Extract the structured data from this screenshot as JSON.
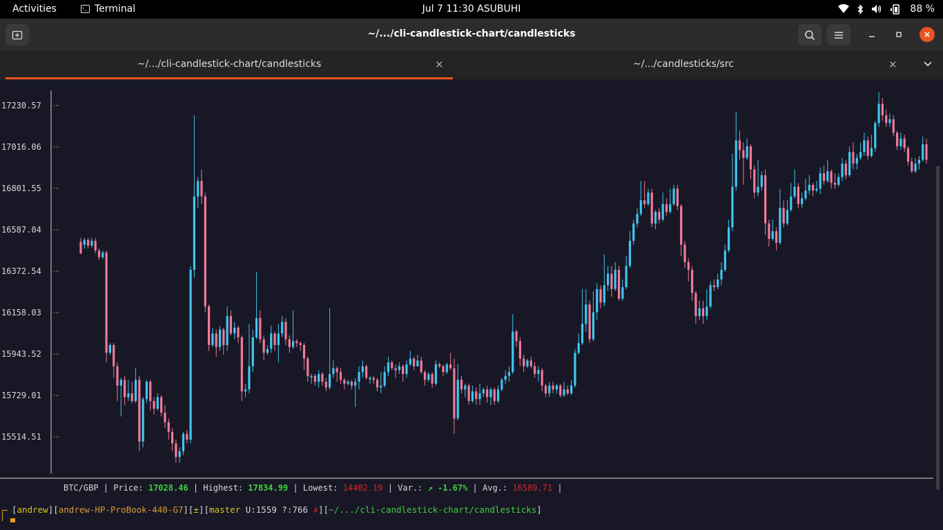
{
  "topbar": {
    "activities": "Activities",
    "app_name": "Terminal",
    "clock": "Jul 7  11:30 ASUBUHI",
    "battery": "88 %"
  },
  "window": {
    "title": "~/.../cli-candlestick-chart/candlesticks"
  },
  "tabs": [
    {
      "label": "~/.../cli-candlestick-chart/candlesticks",
      "active": true
    },
    {
      "label": "~/.../candlesticks/src",
      "active": false
    }
  ],
  "colors": {
    "bullish": "#3fc7f0",
    "bearish": "#f07a9b",
    "accent": "#e95420",
    "close_button": "#e95420"
  },
  "chart_data": {
    "type": "candlestick",
    "y_ticks": [
      "17230.57",
      "17016.06",
      "16801.55",
      "16587.04",
      "16372.54",
      "16158.03",
      "15943.52",
      "15729.01",
      "15514.51"
    ],
    "ylim": [
      15400,
      17320
    ],
    "candles": [
      [
        16525,
        16465,
        16545,
        16460
      ],
      [
        16510,
        16535,
        16545,
        16490
      ],
      [
        16535,
        16505,
        16545,
        16490
      ],
      [
        16505,
        16530,
        16545,
        16495
      ],
      [
        16530,
        16480,
        16545,
        16465
      ],
      [
        16480,
        16445,
        16490,
        16430
      ],
      [
        16445,
        16470,
        16480,
        16435
      ],
      [
        16470,
        15950,
        16480,
        15900
      ],
      [
        15950,
        15990,
        16000,
        15940
      ],
      [
        15990,
        15880,
        16000,
        15820
      ],
      [
        15880,
        15780,
        15900,
        15700
      ],
      [
        15780,
        15810,
        15820,
        15620
      ],
      [
        15810,
        15720,
        15830,
        15680
      ],
      [
        15720,
        15740,
        15810,
        15700
      ],
      [
        15740,
        15700,
        15800,
        15690
      ],
      [
        15700,
        15810,
        15870,
        15690
      ],
      [
        15810,
        15490,
        15830,
        15440
      ],
      [
        15490,
        15710,
        15720,
        15460
      ],
      [
        15710,
        15800,
        15810,
        15690
      ],
      [
        15800,
        15700,
        15810,
        15650
      ],
      [
        15700,
        15660,
        15720,
        15630
      ],
      [
        15660,
        15720,
        15740,
        15650
      ],
      [
        15720,
        15640,
        15730,
        15620
      ],
      [
        15640,
        15590,
        15680,
        15560
      ],
      [
        15590,
        15540,
        15610,
        15500
      ],
      [
        15540,
        15480,
        15560,
        15440
      ],
      [
        15480,
        15410,
        15500,
        15380
      ],
      [
        15410,
        15440,
        15460,
        15380
      ],
      [
        15440,
        15530,
        15540,
        15420
      ],
      [
        15530,
        15500,
        15550,
        15480
      ],
      [
        15500,
        16380,
        16400,
        15480
      ],
      [
        16380,
        16760,
        17180,
        16340
      ],
      [
        16760,
        16840,
        16860,
        16700
      ],
      [
        16840,
        16760,
        16900,
        16720
      ],
      [
        16760,
        16190,
        16780,
        16160
      ],
      [
        16190,
        15990,
        16200,
        15960
      ],
      [
        15990,
        16050,
        16080,
        15980
      ],
      [
        16050,
        15980,
        16070,
        15930
      ],
      [
        15980,
        16070,
        16090,
        15960
      ],
      [
        16070,
        15990,
        16080,
        15940
      ],
      [
        15990,
        16140,
        16190,
        15960
      ],
      [
        16140,
        16050,
        16170,
        16040
      ],
      [
        16050,
        16080,
        16110,
        16020
      ],
      [
        16080,
        16030,
        16090,
        16000
      ],
      [
        16030,
        15750,
        16040,
        15700
      ],
      [
        15750,
        15760,
        15790,
        15720
      ],
      [
        15760,
        15880,
        16100,
        15740
      ],
      [
        15880,
        16030,
        16070,
        15850
      ],
      [
        16030,
        16130,
        16370,
        16020
      ],
      [
        16130,
        16020,
        16170,
        16000
      ],
      [
        16020,
        15950,
        16040,
        15910
      ],
      [
        15950,
        15970,
        15990,
        15940
      ],
      [
        15970,
        16050,
        16090,
        15950
      ],
      [
        16050,
        15990,
        16060,
        15960
      ],
      [
        15990,
        16050,
        16100,
        15900
      ],
      [
        16050,
        16110,
        16140,
        16030
      ],
      [
        16110,
        16020,
        16130,
        15990
      ],
      [
        16020,
        15980,
        16040,
        15950
      ],
      [
        15980,
        16010,
        16170,
        15970
      ],
      [
        16010,
        16000,
        16020,
        15980
      ],
      [
        16000,
        15990,
        16010,
        15960
      ],
      [
        15990,
        15920,
        16000,
        15860
      ],
      [
        15920,
        15830,
        15930,
        15800
      ],
      [
        15830,
        15830,
        15840,
        15790
      ],
      [
        15830,
        15800,
        15840,
        15780
      ],
      [
        15800,
        15840,
        15860,
        15770
      ],
      [
        15840,
        15800,
        15850,
        15780
      ],
      [
        15800,
        15770,
        15820,
        15750
      ],
      [
        15770,
        15840,
        16180,
        15760
      ],
      [
        15840,
        15870,
        15910,
        15820
      ],
      [
        15870,
        15850,
        15880,
        15800
      ],
      [
        15850,
        15810,
        15870,
        15790
      ],
      [
        15810,
        15790,
        15820,
        15760
      ],
      [
        15790,
        15800,
        15810,
        15780
      ],
      [
        15800,
        15780,
        15810,
        15760
      ],
      [
        15780,
        15800,
        15820,
        15670
      ],
      [
        15800,
        15850,
        15880,
        15760
      ],
      [
        15850,
        15880,
        15910,
        15820
      ],
      [
        15880,
        15820,
        15890,
        15810
      ],
      [
        15820,
        15820,
        15830,
        15790
      ],
      [
        15820,
        15810,
        15830,
        15790
      ],
      [
        15810,
        15770,
        15820,
        15750
      ],
      [
        15770,
        15780,
        15850,
        15740
      ],
      [
        15780,
        15850,
        15880,
        15770
      ],
      [
        15850,
        15900,
        15930,
        15830
      ],
      [
        15900,
        15870,
        15910,
        15860
      ],
      [
        15870,
        15860,
        15890,
        15820
      ],
      [
        15860,
        15880,
        15900,
        15840
      ],
      [
        15880,
        15840,
        15890,
        15800
      ],
      [
        15840,
        15890,
        15910,
        15820
      ],
      [
        15890,
        15920,
        15960,
        15880
      ],
      [
        15920,
        15880,
        15930,
        15860
      ],
      [
        15880,
        15910,
        15940,
        15880
      ],
      [
        15910,
        15850,
        15930,
        15840
      ],
      [
        15850,
        15810,
        15860,
        15780
      ],
      [
        15810,
        15840,
        15850,
        15800
      ],
      [
        15840,
        15790,
        15850,
        15770
      ],
      [
        15790,
        15890,
        15910,
        15780
      ],
      [
        15890,
        15880,
        15900,
        15870
      ],
      [
        15880,
        15850,
        15890,
        15830
      ],
      [
        15850,
        15890,
        15900,
        15840
      ],
      [
        15890,
        15870,
        15950,
        15860
      ],
      [
        15870,
        15610,
        15920,
        15530
      ],
      [
        15610,
        15810,
        15890,
        15600
      ],
      [
        15810,
        15760,
        15830,
        15740
      ],
      [
        15760,
        15780,
        15790,
        15720
      ],
      [
        15780,
        15700,
        15790,
        15680
      ],
      [
        15700,
        15750,
        15780,
        15690
      ],
      [
        15750,
        15710,
        15770,
        15680
      ],
      [
        15710,
        15740,
        15790,
        15680
      ],
      [
        15740,
        15760,
        15770,
        15720
      ],
      [
        15760,
        15720,
        15780,
        15690
      ],
      [
        15720,
        15760,
        15770,
        15680
      ],
      [
        15760,
        15700,
        15770,
        15680
      ],
      [
        15700,
        15760,
        15780,
        15690
      ],
      [
        15760,
        15810,
        15820,
        15750
      ],
      [
        15810,
        15830,
        15860,
        15790
      ],
      [
        15830,
        15850,
        15880,
        15800
      ],
      [
        15850,
        16060,
        16150,
        15840
      ],
      [
        16060,
        16010,
        16070,
        15980
      ],
      [
        16010,
        15920,
        16030,
        15880
      ],
      [
        15920,
        15880,
        15940,
        15850
      ],
      [
        15880,
        15910,
        15920,
        15870
      ],
      [
        15910,
        15880,
        15930,
        15870
      ],
      [
        15880,
        15840,
        15900,
        15820
      ],
      [
        15840,
        15860,
        15880,
        15800
      ],
      [
        15860,
        15780,
        15870,
        15750
      ],
      [
        15780,
        15740,
        15790,
        15720
      ],
      [
        15740,
        15780,
        15800,
        15720
      ],
      [
        15780,
        15760,
        15800,
        15740
      ],
      [
        15760,
        15780,
        15790,
        15740
      ],
      [
        15780,
        15730,
        15790,
        15720
      ],
      [
        15730,
        15760,
        15800,
        15720
      ],
      [
        15760,
        15740,
        15780,
        15730
      ],
      [
        15740,
        15780,
        15810,
        15730
      ],
      [
        15780,
        15950,
        15970,
        15770
      ],
      [
        15950,
        16000,
        16050,
        15940
      ],
      [
        16000,
        16100,
        16280,
        15990
      ],
      [
        16100,
        16200,
        16280,
        16060
      ],
      [
        16200,
        16020,
        16220,
        16000
      ],
      [
        16020,
        16160,
        16270,
        16010
      ],
      [
        16160,
        16280,
        16310,
        16120
      ],
      [
        16280,
        16210,
        16300,
        16180
      ],
      [
        16210,
        16300,
        16460,
        16190
      ],
      [
        16300,
        16360,
        16400,
        16270
      ],
      [
        16360,
        16280,
        16400,
        16240
      ],
      [
        16280,
        16380,
        16420,
        16270
      ],
      [
        16380,
        16230,
        16400,
        16220
      ],
      [
        16230,
        16290,
        16330,
        16220
      ],
      [
        16290,
        16400,
        16450,
        16280
      ],
      [
        16400,
        16530,
        16580,
        16390
      ],
      [
        16530,
        16620,
        16640,
        16510
      ],
      [
        16620,
        16670,
        16700,
        16600
      ],
      [
        16670,
        16740,
        16840,
        16660
      ],
      [
        16740,
        16720,
        16840,
        16700
      ],
      [
        16720,
        16780,
        16800,
        16710
      ],
      [
        16780,
        16620,
        16800,
        16600
      ],
      [
        16620,
        16680,
        16690,
        16590
      ],
      [
        16680,
        16640,
        16700,
        16620
      ],
      [
        16640,
        16720,
        16780,
        16630
      ],
      [
        16720,
        16680,
        16750,
        16660
      ],
      [
        16680,
        16720,
        16800,
        16670
      ],
      [
        16720,
        16800,
        16820,
        16710
      ],
      [
        16800,
        16710,
        16820,
        16690
      ],
      [
        16710,
        16510,
        16720,
        16450
      ],
      [
        16510,
        16420,
        16530,
        16390
      ],
      [
        16420,
        16380,
        16440,
        16320
      ],
      [
        16380,
        16260,
        16400,
        16220
      ],
      [
        16260,
        16140,
        16270,
        16100
      ],
      [
        16140,
        16180,
        16220,
        16120
      ],
      [
        16180,
        16140,
        16220,
        16100
      ],
      [
        16140,
        16190,
        16280,
        16120
      ],
      [
        16190,
        16300,
        16320,
        16180
      ],
      [
        16300,
        16290,
        16330,
        16270
      ],
      [
        16290,
        16330,
        16360,
        16280
      ],
      [
        16330,
        16380,
        16420,
        16300
      ],
      [
        16380,
        16480,
        16510,
        16370
      ],
      [
        16480,
        16600,
        16640,
        16470
      ],
      [
        16600,
        16810,
        16980,
        16580
      ],
      [
        16810,
        17050,
        17200,
        16790
      ],
      [
        17050,
        17000,
        17100,
        16950
      ],
      [
        17000,
        16960,
        17040,
        16820
      ],
      [
        16960,
        17020,
        17060,
        16950
      ],
      [
        17020,
        16900,
        17030,
        16850
      ],
      [
        16900,
        16780,
        16920,
        16750
      ],
      [
        16780,
        16810,
        16950,
        16760
      ],
      [
        16810,
        16870,
        16890,
        16790
      ],
      [
        16870,
        16620,
        16900,
        16560
      ],
      [
        16620,
        16540,
        16640,
        16500
      ],
      [
        16540,
        16580,
        16640,
        16530
      ],
      [
        16580,
        16520,
        16600,
        16480
      ],
      [
        16520,
        16700,
        16800,
        16510
      ],
      [
        16700,
        16620,
        16740,
        16600
      ],
      [
        16620,
        16690,
        16740,
        16610
      ],
      [
        16690,
        16760,
        16830,
        16680
      ],
      [
        16760,
        16810,
        16900,
        16750
      ],
      [
        16810,
        16720,
        16830,
        16700
      ],
      [
        16720,
        16750,
        16780,
        16700
      ],
      [
        16750,
        16790,
        16850,
        16740
      ],
      [
        16790,
        16820,
        16870,
        16770
      ],
      [
        16820,
        16790,
        16830,
        16760
      ],
      [
        16790,
        16800,
        16840,
        16780
      ],
      [
        16800,
        16880,
        16910,
        16770
      ],
      [
        16880,
        16840,
        16920,
        16820
      ],
      [
        16840,
        16890,
        16950,
        16830
      ],
      [
        16890,
        16830,
        16900,
        16800
      ],
      [
        16830,
        16820,
        16880,
        16800
      ],
      [
        16820,
        16860,
        16880,
        16810
      ],
      [
        16860,
        16930,
        16960,
        16840
      ],
      [
        16930,
        16870,
        16950,
        16850
      ],
      [
        16870,
        16990,
        17020,
        16860
      ],
      [
        16990,
        16930,
        17040,
        16900
      ],
      [
        16930,
        16960,
        16980,
        16900
      ],
      [
        16960,
        16990,
        17040,
        16950
      ],
      [
        16990,
        17050,
        17090,
        16970
      ],
      [
        17050,
        16970,
        17070,
        16950
      ],
      [
        16970,
        17010,
        17080,
        16960
      ],
      [
        17010,
        17140,
        17150,
        16990
      ],
      [
        17140,
        17240,
        17300,
        17120
      ],
      [
        17240,
        17180,
        17270,
        17150
      ],
      [
        17180,
        17140,
        17210,
        17120
      ],
      [
        17140,
        17160,
        17190,
        17120
      ],
      [
        17160,
        17090,
        17180,
        17070
      ],
      [
        17090,
        17020,
        17100,
        17000
      ],
      [
        17020,
        17060,
        17090,
        17000
      ],
      [
        17060,
        17010,
        17080,
        16990
      ],
      [
        17010,
        16940,
        17020,
        16920
      ],
      [
        16940,
        16890,
        16960,
        16880
      ],
      [
        16890,
        16930,
        16960,
        16880
      ],
      [
        16930,
        16950,
        16970,
        16900
      ],
      [
        16950,
        17030,
        17070,
        16940
      ],
      [
        17030,
        16950,
        17060,
        16930
      ]
    ]
  },
  "stats": {
    "pair": "BTC/GBP",
    "price_label": "Price:",
    "price": "17028.46",
    "highest_label": "Highest:",
    "highest": "17834.99",
    "lowest_label": "Lowest:",
    "lowest": "14402.19",
    "var_label": "Var.:",
    "var": "↗ -1.67%",
    "avg_label": "Avg.:",
    "avg": "16589.71"
  },
  "prompt": {
    "user": "andrew",
    "host": "andrew-HP-ProBook-440-G7",
    "git_flag": "±",
    "branch": "master",
    "untracked": "U:1559",
    "modified": "?:766",
    "dirty_mark": "✗",
    "path": "~/.../cli-candlestick-chart/candlesticks"
  },
  "icons": {
    "new_tab": "new-tab-icon",
    "search": "search-icon",
    "menu": "hamburger-menu-icon",
    "minimize": "minimize-icon",
    "maximize": "maximize-icon",
    "close": "close-icon"
  }
}
